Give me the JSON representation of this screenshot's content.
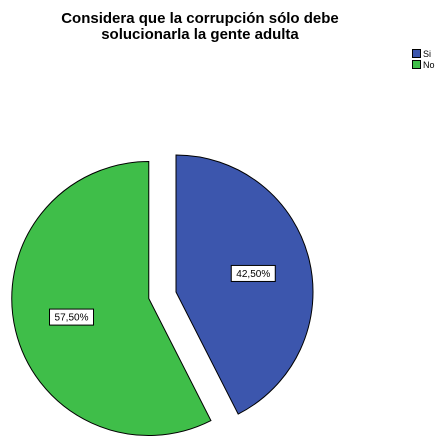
{
  "chart_data": {
    "type": "pie",
    "title_lines": [
      "Considera que la corrupción sólo debe",
      "solucionarla la gente adulta"
    ],
    "slices": [
      {
        "label": "Si",
        "value": 42.5,
        "display": "42,50%",
        "color": "#3c56ad",
        "exploded": false
      },
      {
        "label": "No",
        "value": 57.5,
        "display": "57,50%",
        "color": "#3fbe49",
        "exploded": true
      }
    ],
    "legend": {
      "position": "top-right",
      "items": [
        {
          "label": "Si",
          "color": "#3c56ad"
        },
        {
          "label": "No",
          "color": "#3fbe49"
        }
      ]
    }
  }
}
